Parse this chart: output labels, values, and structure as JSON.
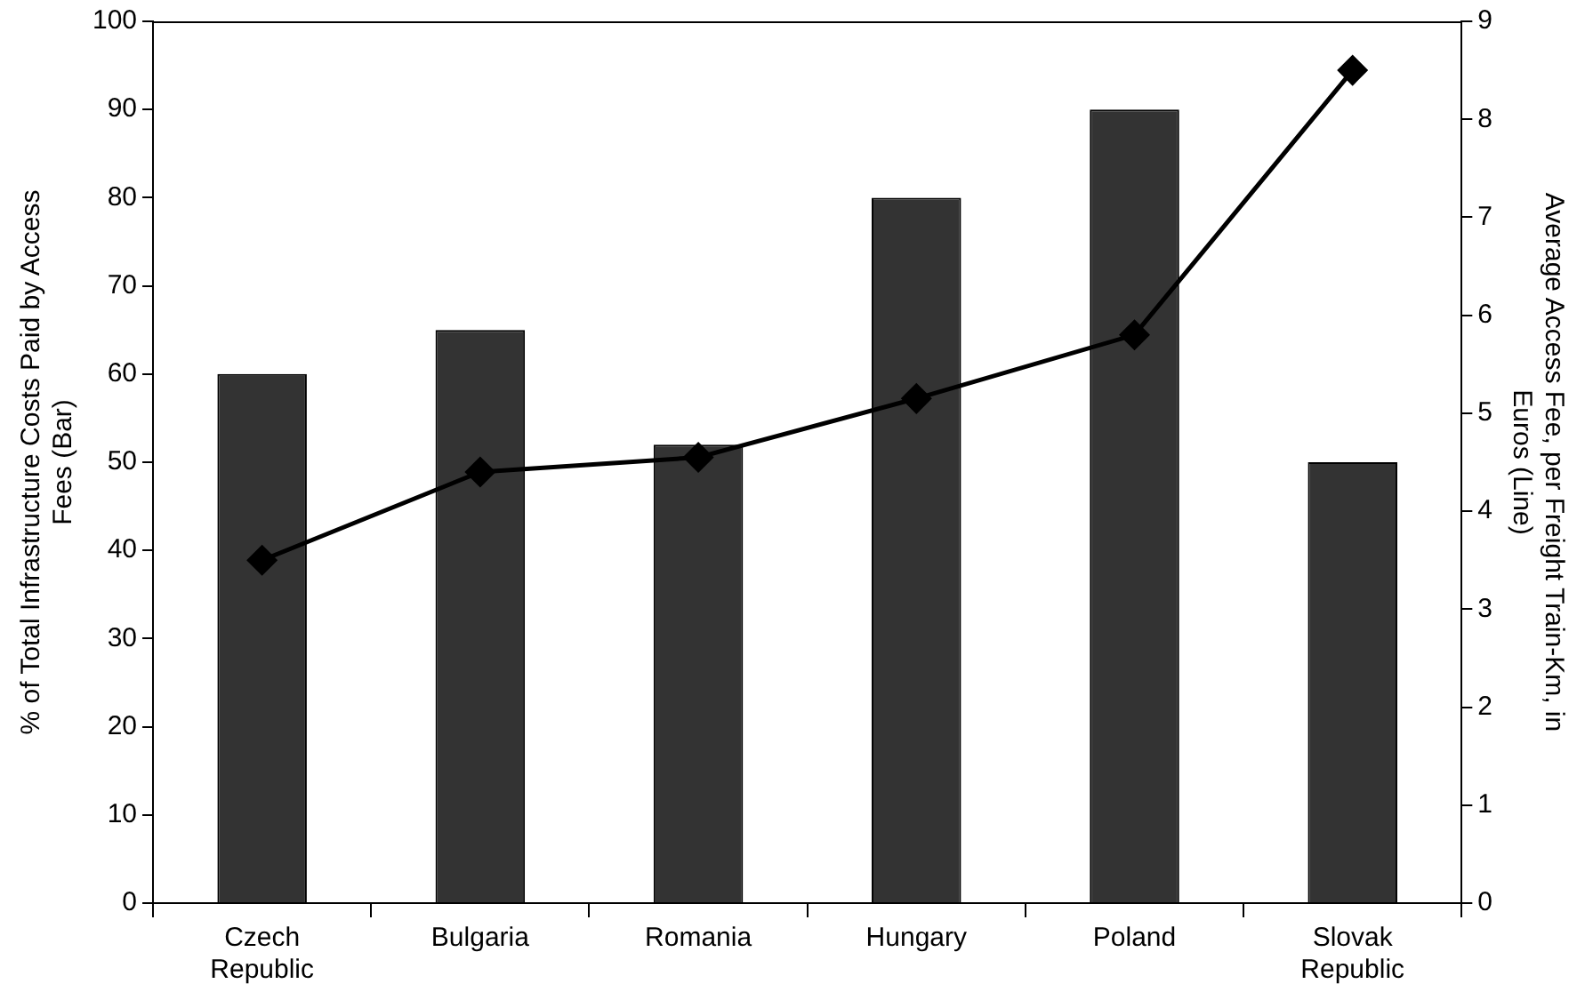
{
  "chart_data": {
    "type": "bar",
    "categories": [
      [
        "Czech",
        "Republic"
      ],
      [
        "Bulgaria"
      ],
      [
        "Romania"
      ],
      [
        "Hungary"
      ],
      [
        "Poland"
      ],
      [
        "Slovak",
        "Republic"
      ]
    ],
    "ylabel": "% of Total Infrastructure Costs Paid by Access Fees (Bar)",
    "y2label": "Average Access Fee, per Freight Train-Km, in Euros (Line)",
    "series": [
      {
        "color": "#333333",
        "values": [
          60,
          65,
          52,
          80,
          90,
          50
        ]
      },
      {
        "type": "line",
        "axis": "y2",
        "color": "#000000",
        "marker": "diamond",
        "line_style": "solid",
        "values": [
          3.5,
          4.4,
          4.55,
          5.15,
          5.8,
          8.5
        ]
      }
    ],
    "ylim": [
      0,
      100
    ],
    "yticks": [
      0,
      10,
      20,
      30,
      40,
      50,
      60,
      70,
      80,
      90,
      100
    ],
    "y2lim": [
      0,
      9
    ],
    "y2ticks": [
      0,
      1,
      2,
      3,
      4,
      5,
      6,
      7,
      8,
      9
    ],
    "grid": false,
    "legend": false
  }
}
